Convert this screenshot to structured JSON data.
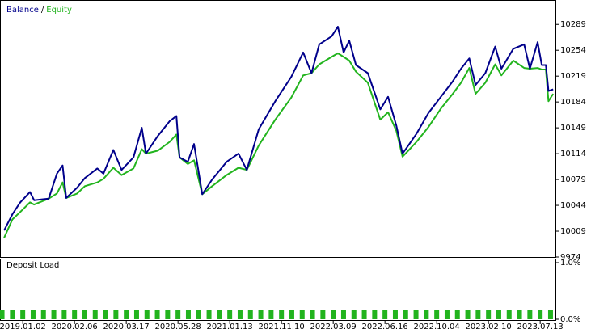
{
  "chart_data": [
    {
      "type": "line",
      "legend_separator": "/",
      "xlim": [
        -0.44,
        10.31
      ],
      "ylim": [
        9974,
        10321
      ],
      "yticks": [
        9974,
        10009,
        10044,
        10079,
        10114,
        10149,
        10184,
        10219,
        10254,
        10289
      ],
      "x": [
        -0.36,
        -0.2,
        -0.05,
        0.14,
        0.22,
        0.5,
        0.66,
        0.77,
        0.84,
        1.05,
        1.2,
        1.44,
        1.56,
        1.75,
        1.91,
        2.14,
        2.3,
        2.38,
        2.61,
        2.84,
        2.97,
        3.03,
        3.19,
        3.31,
        3.47,
        3.66,
        3.94,
        4.17,
        4.33,
        4.56,
        4.88,
        5.19,
        5.42,
        5.58,
        5.73,
        5.97,
        6.09,
        6.2,
        6.31,
        6.44,
        6.67,
        6.91,
        7.06,
        7.22,
        7.34,
        7.45,
        7.61,
        7.84,
        8.08,
        8.31,
        8.47,
        8.63,
        8.75,
        8.94,
        9.13,
        9.25,
        9.48,
        9.69,
        9.8,
        9.95,
        10.03,
        10.11,
        10.16,
        10.25
      ],
      "series": [
        {
          "name": "Equity",
          "color": "#22b41e",
          "values": [
            10000,
            10025,
            10035,
            10048,
            10045,
            10053,
            10060,
            10075,
            10054,
            10060,
            10070,
            10075,
            10080,
            10095,
            10085,
            10094,
            10120,
            10114,
            10118,
            10130,
            10140,
            10109,
            10100,
            10105,
            10059,
            10070,
            10085,
            10095,
            10092,
            10125,
            10160,
            10190,
            10220,
            10223,
            10235,
            10245,
            10250,
            10245,
            10240,
            10225,
            10210,
            10160,
            10170,
            10145,
            10110,
            10118,
            10130,
            10150,
            10175,
            10195,
            10210,
            10230,
            10195,
            10210,
            10235,
            10220,
            10240,
            10230,
            10229,
            10230,
            10228,
            10228,
            10185,
            10195
          ]
        },
        {
          "name": "Balance",
          "color": "#00008b",
          "values": [
            10010,
            10032,
            10048,
            10062,
            10051,
            10053,
            10087,
            10098,
            10054,
            10068,
            10081,
            10094,
            10087,
            10119,
            10092,
            10109,
            10149,
            10114,
            10138,
            10158,
            10165,
            10109,
            10103,
            10127,
            10059,
            10079,
            10103,
            10114,
            10092,
            10147,
            10185,
            10218,
            10251,
            10223,
            10262,
            10273,
            10286,
            10251,
            10267,
            10234,
            10223,
            10174,
            10191,
            10152,
            10114,
            10125,
            10141,
            10169,
            10191,
            10212,
            10229,
            10243,
            10207,
            10223,
            10259,
            10229,
            10256,
            10262,
            10229,
            10265,
            10234,
            10234,
            10199,
            10201
          ]
        }
      ]
    },
    {
      "type": "bar",
      "title": "Deposit Load",
      "color": "#22b41e",
      "xlim": [
        -0.44,
        10.31
      ],
      "ylim": [
        0,
        1
      ],
      "yticks": [
        {
          "value": 1,
          "label": "1.0%"
        },
        {
          "value": 0,
          "label": "0.0%"
        }
      ],
      "xticks": [
        {
          "value": 0,
          "label": "2019.01.02"
        },
        {
          "value": 1,
          "label": "2020.02.06"
        },
        {
          "value": 2,
          "label": "2020.03.17"
        },
        {
          "value": 3,
          "label": "2020.05.28"
        },
        {
          "value": 4,
          "label": "2021.01.13"
        },
        {
          "value": 5,
          "label": "2021.11.10"
        },
        {
          "value": 6,
          "label": "2022.03.09"
        },
        {
          "value": 7,
          "label": "2022.06.16"
        },
        {
          "value": 8,
          "label": "2022.10.04"
        },
        {
          "value": 9,
          "label": "2023.02.10"
        },
        {
          "value": 10,
          "label": "2023.07.13"
        }
      ],
      "x": [
        -0.4,
        -0.2,
        0,
        0.2,
        0.4,
        0.6,
        0.8,
        1,
        1.2,
        1.4,
        1.6,
        1.8,
        2,
        2.2,
        2.4,
        2.6,
        2.8,
        3,
        3.2,
        3.4,
        3.6,
        3.8,
        4,
        4.2,
        4.4,
        4.6,
        4.8,
        5,
        5.2,
        5.4,
        5.6,
        5.8,
        6,
        6.2,
        6.4,
        6.6,
        6.8,
        7,
        7.2,
        7.4,
        7.6,
        7.8,
        8,
        8.2,
        8.4,
        8.6,
        8.8,
        9,
        9.2,
        9.4,
        9.6,
        9.8,
        10,
        10.2
      ],
      "values": [
        0.17,
        0.17,
        0.17,
        0.17,
        0.17,
        0.17,
        0.17,
        0.17,
        0.17,
        0.17,
        0.17,
        0.17,
        0.17,
        0.17,
        0.17,
        0.17,
        0.17,
        0.17,
        0.17,
        0.17,
        0.17,
        0.17,
        0.17,
        0.17,
        0.17,
        0.17,
        0.17,
        0.17,
        0.17,
        0.17,
        0.17,
        0.17,
        0.17,
        0.17,
        0.17,
        0.17,
        0.17,
        0.17,
        0.17,
        0.17,
        0.17,
        0.17,
        0.17,
        0.17,
        0.17,
        0.17,
        0.17,
        0.17,
        0.17,
        0.17,
        0.17,
        0.17,
        0.17,
        0.17
      ]
    }
  ]
}
